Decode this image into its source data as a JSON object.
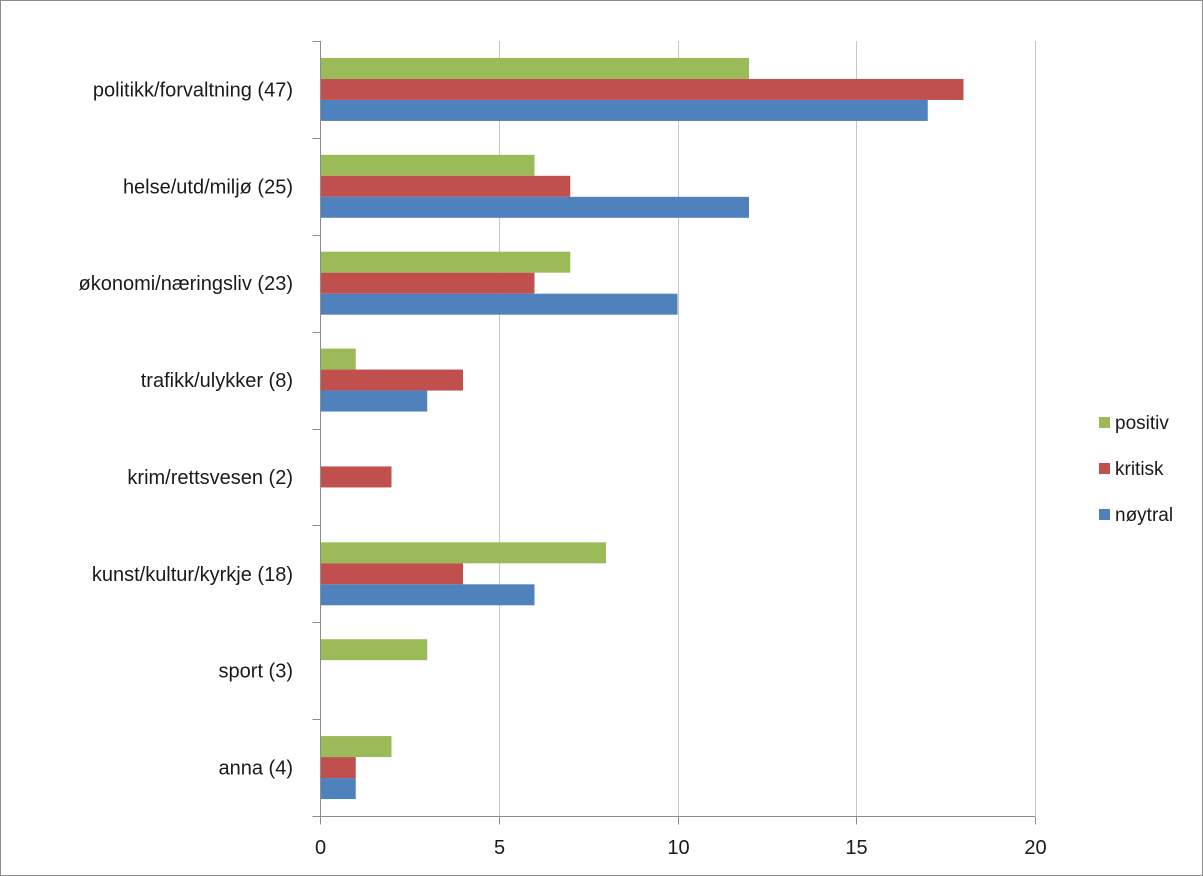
{
  "chart_data": {
    "type": "bar",
    "orientation": "horizontal",
    "categories": [
      "politikk/forvaltning (47)",
      "helse/utd/miljø (25)",
      "økonomi/næringsliv (23)",
      "trafikk/ulykker (8)",
      "krim/rettsvesen (2)",
      "kunst/kultur/kyrkje (18)",
      "sport (3)",
      "anna (4)"
    ],
    "series": [
      {
        "name": "positiv",
        "color": "#9bbb59",
        "values": [
          12,
          6,
          7,
          1,
          0,
          8,
          3,
          2
        ]
      },
      {
        "name": "kritisk",
        "color": "#c0504d",
        "values": [
          18,
          7,
          6,
          4,
          2,
          4,
          0,
          1
        ]
      },
      {
        "name": "nøytral",
        "color": "#4f81bd",
        "values": [
          17,
          12,
          10,
          3,
          0,
          6,
          0,
          1
        ]
      }
    ],
    "xlim": [
      0,
      20
    ],
    "xticks": [
      0,
      5,
      10,
      15,
      20
    ],
    "xtick_labels": [
      "0",
      "5",
      "10",
      "15",
      "20"
    ],
    "grid": "vertical",
    "legend_position": "right",
    "title": "",
    "xlabel": "",
    "ylabel": ""
  }
}
